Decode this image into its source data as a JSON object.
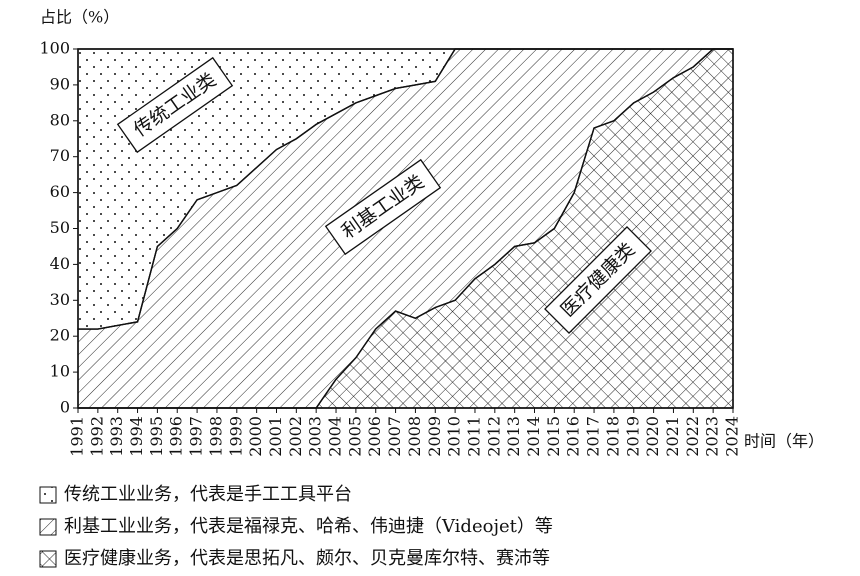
{
  "chart_data": {
    "type": "area",
    "stacked": true,
    "y_label": "占比（%）",
    "x_label": "时间（年）",
    "categories": [
      "1991",
      "1992",
      "1993",
      "1994",
      "1995",
      "1996",
      "1997",
      "1998",
      "1999",
      "2000",
      "2001",
      "2002",
      "2003",
      "2004",
      "2005",
      "2006",
      "2007",
      "2008",
      "2009",
      "2010",
      "2011",
      "2012",
      "2013",
      "2014",
      "2015",
      "2016",
      "2017",
      "2018",
      "2019",
      "2020",
      "2021",
      "2022",
      "2023",
      "2024"
    ],
    "series": [
      {
        "name": "医疗健康业务，代表是思拓凡、颇尔、贝克曼库尔特、赛沛等",
        "pattern": "crosshatch",
        "color": "#111111",
        "values": [
          0,
          0,
          0,
          0,
          0,
          0,
          0,
          0,
          0,
          0,
          0,
          0,
          0,
          8,
          14,
          22,
          27,
          25,
          28,
          30,
          36,
          40,
          45,
          46,
          50,
          60,
          78,
          80,
          85,
          88,
          92,
          95,
          100,
          100
        ]
      },
      {
        "name": "利基工业业务，代表是福禄克、哈希、伟迪捷（Videojet）等",
        "pattern": "hatch",
        "color": "#111111",
        "values": [
          22,
          22,
          23,
          24,
          45,
          50,
          58,
          60,
          62,
          67,
          72,
          75,
          79,
          74,
          71,
          65,
          62,
          65,
          63,
          70,
          64,
          60,
          55,
          54,
          50,
          40,
          22,
          20,
          15,
          12,
          8,
          5,
          0,
          0
        ]
      },
      {
        "name": "传统工业业务，代表是手工工具平台",
        "pattern": "dots",
        "color": "#111111",
        "values": [
          78,
          78,
          77,
          76,
          55,
          50,
          42,
          40,
          38,
          33,
          28,
          25,
          21,
          18,
          15,
          13,
          11,
          10,
          9,
          0,
          0,
          0,
          0,
          0,
          0,
          0,
          0,
          0,
          0,
          0,
          0,
          0,
          0,
          0
        ]
      }
    ],
    "annotations": [
      "传统工业类",
      "利基工业类",
      "医疗健康类"
    ],
    "ylim": [
      0,
      100
    ],
    "yticks": [
      0,
      10,
      20,
      30,
      40,
      50,
      60,
      70,
      80,
      90,
      100
    ]
  }
}
